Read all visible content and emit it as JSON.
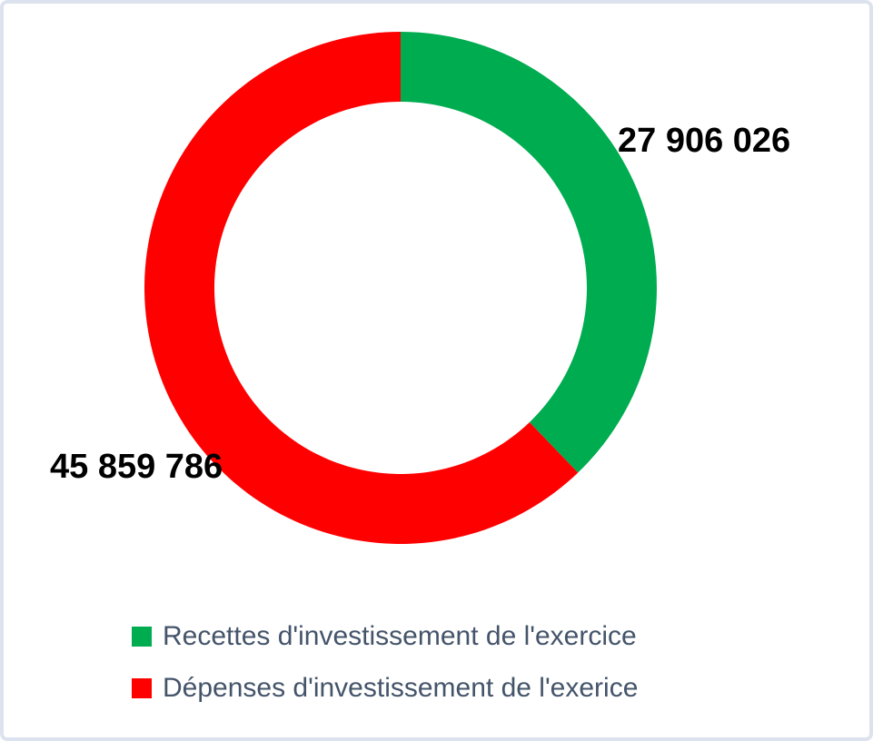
{
  "frame": {
    "background": "#ffffff",
    "border_color": "#dde3ee"
  },
  "chart_data": {
    "type": "pie",
    "subtype": "donut",
    "direction": "clockwise",
    "start_angle_deg": -90,
    "hole_ratio": 0.727,
    "legend_position": "bottom",
    "data_label_color": "#000000",
    "legend_text_color": "#44546a",
    "slices": [
      {
        "label": "Recettes d'investissement de l'exercice",
        "value": 27906026,
        "display_value": "27 906 026",
        "color": "#00ac50"
      },
      {
        "label": "Dépenses d'investissement de l'exerice",
        "value": 45859786,
        "display_value": "45 859 786",
        "color": "#ff0000"
      }
    ]
  }
}
